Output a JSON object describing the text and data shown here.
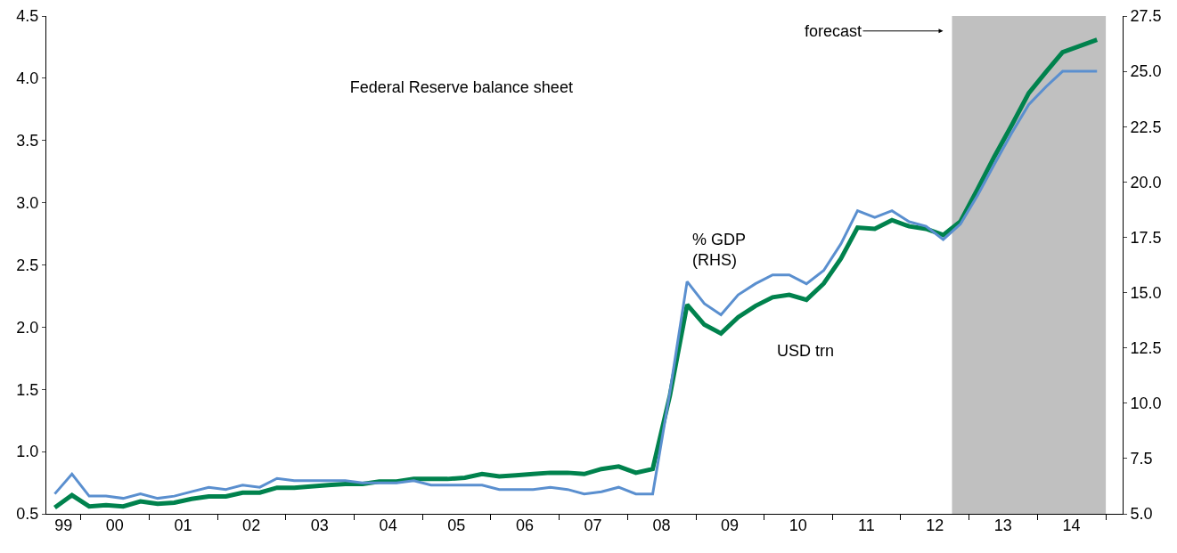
{
  "chart_data": {
    "type": "line",
    "title": "Federal Reserve balance sheet",
    "x": [
      "1999-08-15",
      "1999-11-15",
      "2000-02-15",
      "2000-05-15",
      "2000-08-15",
      "2000-11-15",
      "2001-02-15",
      "2001-05-15",
      "2001-08-15",
      "2001-11-15",
      "2002-02-15",
      "2002-05-15",
      "2002-08-15",
      "2002-11-15",
      "2003-02-15",
      "2003-05-15",
      "2003-08-15",
      "2003-11-15",
      "2004-02-15",
      "2004-05-15",
      "2004-08-15",
      "2004-11-15",
      "2005-02-15",
      "2005-05-15",
      "2005-08-15",
      "2005-11-15",
      "2006-02-15",
      "2006-05-15",
      "2006-08-15",
      "2006-11-15",
      "2007-02-15",
      "2007-05-15",
      "2007-08-15",
      "2007-11-15",
      "2008-02-15",
      "2008-05-15",
      "2008-08-15",
      "2008-11-15",
      "2009-02-15",
      "2009-05-15",
      "2009-08-15",
      "2009-11-15",
      "2010-02-15",
      "2010-05-15",
      "2010-08-15",
      "2010-11-15",
      "2011-02-15",
      "2011-05-15",
      "2011-08-15",
      "2011-11-15",
      "2012-02-15",
      "2012-05-15",
      "2012-08-15",
      "2012-11-15",
      "2013-02-15",
      "2013-05-15",
      "2013-08-15",
      "2013-11-15",
      "2014-02-15",
      "2014-05-15",
      "2014-08-15",
      "2014-11-15"
    ],
    "series": [
      {
        "name": "% GDP (RHS)",
        "color": "#5a8fcf",
        "axis": "y2",
        "values": [
          5.9,
          6.8,
          5.8,
          5.8,
          5.7,
          5.9,
          5.7,
          5.8,
          6.0,
          6.2,
          6.1,
          6.3,
          6.2,
          6.6,
          6.5,
          6.5,
          6.5,
          6.5,
          6.4,
          6.4,
          6.4,
          6.5,
          6.3,
          6.3,
          6.3,
          6.3,
          6.1,
          6.1,
          6.1,
          6.2,
          6.1,
          5.9,
          6.0,
          6.2,
          5.9,
          5.9,
          10.5,
          15.5,
          14.5,
          14.0,
          14.9,
          15.4,
          15.8,
          15.8,
          15.4,
          16.0,
          17.2,
          18.7,
          18.4,
          18.7,
          18.2,
          18.0,
          17.4,
          18.1,
          19.4,
          20.8,
          22.2,
          23.5,
          24.3,
          25.0,
          25.0,
          25.0
        ]
      },
      {
        "name": "USD trn",
        "color": "#00824d",
        "values": [
          0.55,
          0.65,
          0.56,
          0.57,
          0.56,
          0.6,
          0.58,
          0.59,
          0.62,
          0.64,
          0.64,
          0.67,
          0.67,
          0.71,
          0.71,
          0.72,
          0.73,
          0.74,
          0.74,
          0.76,
          0.76,
          0.78,
          0.78,
          0.78,
          0.79,
          0.82,
          0.8,
          0.81,
          0.82,
          0.83,
          0.83,
          0.82,
          0.86,
          0.88,
          0.83,
          0.86,
          1.45,
          2.18,
          2.02,
          1.95,
          2.08,
          2.17,
          2.24,
          2.26,
          2.22,
          2.35,
          2.55,
          2.8,
          2.79,
          2.86,
          2.81,
          2.79,
          2.74,
          2.85,
          3.11,
          3.37,
          3.62,
          3.88,
          4.05,
          4.21,
          4.26,
          4.31
        ]
      }
    ],
    "xlim": [
      "1999-07-01",
      "2015-04-01"
    ],
    "xticks": [
      {
        "value": "1999-10-01",
        "label": "99"
      },
      {
        "value": "2000-01-01",
        "label": null
      },
      {
        "value": "2000-07-01",
        "label": "00"
      },
      {
        "value": "2001-01-01",
        "label": null
      },
      {
        "value": "2001-07-01",
        "label": "01"
      },
      {
        "value": "2002-01-01",
        "label": null
      },
      {
        "value": "2002-07-01",
        "label": "02"
      },
      {
        "value": "2003-01-01",
        "label": null
      },
      {
        "value": "2003-07-01",
        "label": "03"
      },
      {
        "value": "2004-01-01",
        "label": null
      },
      {
        "value": "2004-07-01",
        "label": "04"
      },
      {
        "value": "2005-01-01",
        "label": null
      },
      {
        "value": "2005-07-01",
        "label": "05"
      },
      {
        "value": "2006-01-01",
        "label": null
      },
      {
        "value": "2006-07-01",
        "label": "06"
      },
      {
        "value": "2007-01-01",
        "label": null
      },
      {
        "value": "2007-07-01",
        "label": "07"
      },
      {
        "value": "2008-01-01",
        "label": null
      },
      {
        "value": "2008-07-01",
        "label": "08"
      },
      {
        "value": "2009-01-01",
        "label": null
      },
      {
        "value": "2009-07-01",
        "label": "09"
      },
      {
        "value": "2010-01-01",
        "label": null
      },
      {
        "value": "2010-07-01",
        "label": "10"
      },
      {
        "value": "2011-01-01",
        "label": null
      },
      {
        "value": "2011-07-01",
        "label": "11"
      },
      {
        "value": "2012-01-01",
        "label": null
      },
      {
        "value": "2012-07-01",
        "label": "12"
      },
      {
        "value": "2013-01-01",
        "label": null
      },
      {
        "value": "2013-07-01",
        "label": "13"
      },
      {
        "value": "2014-01-01",
        "label": null
      },
      {
        "value": "2014-07-01",
        "label": "14"
      },
      {
        "value": "2015-01-01",
        "label": null
      }
    ],
    "ylim": [
      0.5,
      4.5
    ],
    "yticks": [
      {
        "value": 0.5,
        "label": "0.5"
      },
      {
        "value": 1,
        "label": "1.0"
      },
      {
        "value": 1.5,
        "label": "1.5"
      },
      {
        "value": 2,
        "label": "2.0"
      },
      {
        "value": 2.5,
        "label": "2.5"
      },
      {
        "value": 3,
        "label": "3.0"
      },
      {
        "value": 3.5,
        "label": "3.5"
      },
      {
        "value": 4,
        "label": "4.0"
      },
      {
        "value": 4.5,
        "label": "4.5"
      }
    ],
    "y2lim": [
      5,
      27.5
    ],
    "y2ticks": [
      {
        "value": 5,
        "label": "5.0"
      },
      {
        "value": 7.5,
        "label": "7.5"
      },
      {
        "value": 10,
        "label": "10.0"
      },
      {
        "value": 12.5,
        "label": "12.5"
      },
      {
        "value": 15,
        "label": "15.0"
      },
      {
        "value": 17.5,
        "label": "17.5"
      },
      {
        "value": 20,
        "label": "20.0"
      },
      {
        "value": 22.5,
        "label": "22.5"
      },
      {
        "value": 25,
        "label": "25.0"
      },
      {
        "value": 27.5,
        "label": "27.5"
      }
    ],
    "bands": [
      {
        "axis": "x",
        "from": "2012-10-01",
        "to": "2015-01-01",
        "label": "forecast",
        "color": "#c0c0c0"
      }
    ],
    "grid": false,
    "legend": false,
    "marker": "none",
    "line_style": "solid"
  }
}
